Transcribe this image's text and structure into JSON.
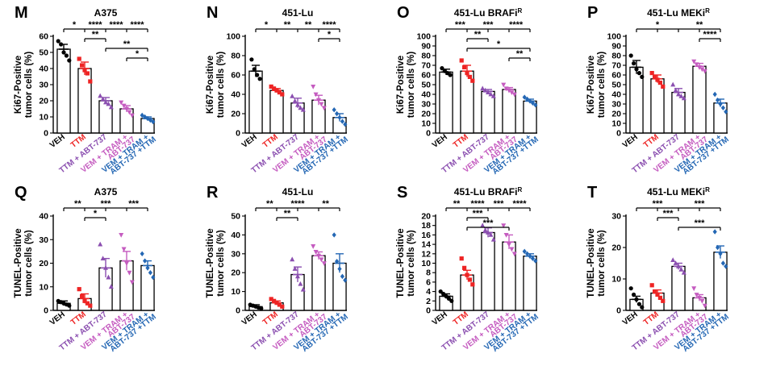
{
  "colors": {
    "VEH": "#000000",
    "TTM": "#ee2424",
    "TTM + ABT-737": "#8b4fb0",
    "VEM + TRAM + ABT-737": "#c55cc0",
    "VEM + TRAM + ABT-737 + TTM": "#2467b4"
  },
  "categories": [
    "VEH",
    "TTM",
    "TTM + ABT-737",
    "VEM + TRAM + ABT-737",
    "VEM + TRAM + ABT-737 + TTM"
  ],
  "tick_label_lines": [
    [
      "VEH"
    ],
    [
      "TTM"
    ],
    [
      "TTM + ABT-737"
    ],
    [
      "VEM + TRAM +",
      "ABT-737"
    ],
    [
      "VEM + TRAM +",
      "ABT-737 +TTM"
    ]
  ],
  "chart_data": [
    {
      "type": "bar",
      "panel": "M",
      "title": "A375",
      "ylabel": "Ki67-Positive tumor cells (%)",
      "ylabel_lines": [
        "Ki67-Positive",
        "tumor cells (%)"
      ],
      "ylim": [
        0,
        60
      ],
      "yticks": [
        0,
        10,
        20,
        30,
        40,
        50,
        60
      ],
      "categories": [
        "VEH",
        "TTM",
        "TTM + ABT-737",
        "VEM + TRAM + ABT-737",
        "VEM + TRAM + ABT-737 + TTM"
      ],
      "values": [
        52,
        40,
        20,
        15,
        9
      ],
      "errors": [
        3,
        4,
        2,
        2,
        1
      ],
      "points": [
        [
          57,
          55,
          50,
          48,
          45
        ],
        [
          46,
          42,
          39,
          37,
          32
        ],
        [
          23,
          21,
          19,
          18,
          16
        ],
        [
          19,
          17,
          15,
          13,
          11
        ],
        [
          11,
          10,
          9,
          8,
          7
        ]
      ],
      "markers": [
        "circle",
        "square",
        "triangle",
        "triangle-down",
        "diamond"
      ],
      "significance": [
        {
          "from": 0,
          "to": 4,
          "labels": [
            "*",
            "****",
            "****",
            "****"
          ],
          "level": 0
        },
        {
          "from": 1,
          "to": 2,
          "labels": [
            "**"
          ],
          "level": 1
        },
        {
          "from": 2,
          "to": 4,
          "labels": [
            "**"
          ],
          "level": 2
        },
        {
          "from": 3,
          "to": 4,
          "labels": [
            "*"
          ],
          "level": 3
        }
      ]
    },
    {
      "type": "bar",
      "panel": "N",
      "title": "451-Lu",
      "ylabel": "Ki67-Positive tumor cells (%)",
      "ylabel_lines": [
        "Ki67-Positive",
        "tumor cells (%)"
      ],
      "ylim": [
        0,
        100
      ],
      "yticks": [
        0,
        20,
        40,
        60,
        80,
        100
      ],
      "categories": [
        "VEH",
        "TTM",
        "TTM + ABT-737",
        "VEM + TRAM + ABT-737",
        "VEM + TRAM + ABT-737 + TTM"
      ],
      "values": [
        64,
        44,
        31,
        34,
        16
      ],
      "errors": [
        6,
        2,
        5,
        5,
        4
      ],
      "points": [
        [
          76,
          66,
          60,
          56
        ],
        [
          48,
          46,
          44,
          42,
          40
        ],
        [
          38,
          33,
          29,
          26,
          24
        ],
        [
          48,
          40,
          34,
          30,
          26
        ],
        [
          24,
          20,
          16,
          12,
          9
        ]
      ],
      "markers": [
        "circle",
        "square",
        "triangle",
        "triangle-down",
        "diamond"
      ],
      "significance": [
        {
          "from": 0,
          "to": 4,
          "labels": [
            "*",
            "**",
            "**",
            "****"
          ],
          "level": 0
        },
        {
          "from": 3,
          "to": 4,
          "labels": [
            "*"
          ],
          "level": 1
        }
      ]
    },
    {
      "type": "bar",
      "panel": "O",
      "title": "451-Lu BRAFi",
      "title_superscript": "R",
      "ylabel": "Ki67-Positive tumor cells (%)",
      "ylabel_lines": [
        "Ki67-Positive",
        "tumor cells (%)"
      ],
      "ylim": [
        0,
        100
      ],
      "yticks": [
        0,
        10,
        20,
        30,
        40,
        50,
        60,
        70,
        80,
        90,
        100
      ],
      "categories": [
        "VEH",
        "TTM",
        "TTM + ABT-737",
        "VEM + TRAM + ABT-737",
        "VEM + TRAM + ABT-737 + TTM"
      ],
      "values": [
        63,
        64,
        43,
        45,
        33
      ],
      "errors": [
        3,
        6,
        2,
        2,
        2
      ],
      "points": [
        [
          67,
          64,
          62,
          60
        ],
        [
          75,
          68,
          62,
          58,
          54
        ],
        [
          46,
          44,
          42,
          40,
          38
        ],
        [
          50,
          46,
          44,
          42,
          40
        ],
        [
          37,
          35,
          33,
          31,
          29
        ]
      ],
      "markers": [
        "circle",
        "square",
        "triangle",
        "triangle-down",
        "diamond"
      ],
      "significance": [
        {
          "from": 0,
          "to": 4,
          "labels": [
            "***",
            "***",
            "****"
          ],
          "level": 0
        },
        {
          "from": 1,
          "to": 2,
          "labels": [
            "**"
          ],
          "level": 1
        },
        {
          "from": 1,
          "to": 4,
          "labels": [
            "*"
          ],
          "level": 2
        },
        {
          "from": 3,
          "to": 4,
          "labels": [
            "**"
          ],
          "level": 3
        }
      ]
    },
    {
      "type": "bar",
      "panel": "P",
      "title": "451-Lu MEKi",
      "title_superscript": "R",
      "ylabel": "Ki67-Positive tumor cells (%)",
      "ylabel_lines": [
        "Ki67-Positive",
        "tumor cells (%)"
      ],
      "ylim": [
        0,
        100
      ],
      "yticks": [
        0,
        10,
        20,
        30,
        40,
        50,
        60,
        70,
        80,
        90,
        100
      ],
      "categories": [
        "VEH",
        "TTM",
        "TTM + ABT-737",
        "VEM + TRAM + ABT-737",
        "VEM + TRAM + ABT-737 + TTM"
      ],
      "values": [
        68,
        56,
        42,
        69,
        31
      ],
      "errors": [
        7,
        4,
        4,
        3,
        4
      ],
      "points": [
        [
          80,
          72,
          66,
          62,
          58
        ],
        [
          62,
          58,
          55,
          52,
          48
        ],
        [
          50,
          44,
          40,
          38,
          36
        ],
        [
          74,
          71,
          68,
          66,
          64
        ],
        [
          40,
          34,
          30,
          26,
          22
        ]
      ],
      "markers": [
        "circle",
        "square",
        "triangle",
        "triangle-down",
        "diamond"
      ],
      "significance": [
        {
          "from": 0,
          "to": 4,
          "labels": [
            "*",
            "**"
          ],
          "level": 0
        },
        {
          "from": 3,
          "to": 4,
          "labels": [
            "****"
          ],
          "level": 1
        }
      ]
    },
    {
      "type": "bar",
      "panel": "Q",
      "title": "A375",
      "ylabel": "TUNEL-Positive tumor cells (%)",
      "ylabel_lines": [
        "TUNEL-Positive",
        "tumor cells (%)"
      ],
      "ylim": [
        0,
        40
      ],
      "yticks": [
        0,
        10,
        20,
        30,
        40
      ],
      "categories": [
        "VEH",
        "TTM",
        "TTM + ABT-737",
        "VEM + TRAM + ABT-737",
        "VEM + TRAM + ABT-737 + TTM"
      ],
      "values": [
        3,
        5,
        18,
        21,
        19
      ],
      "errors": [
        1,
        2,
        4,
        4,
        2
      ],
      "points": [
        [
          4,
          3.5,
          3,
          2.5,
          2
        ],
        [
          9,
          6,
          4,
          3,
          2
        ],
        [
          28,
          22,
          18,
          14,
          10
        ],
        [
          32,
          26,
          20,
          16,
          12
        ],
        [
          24,
          21,
          18,
          16,
          14
        ]
      ],
      "markers": [
        "circle",
        "square",
        "triangle",
        "triangle-down",
        "diamond"
      ],
      "significance": [
        {
          "from": 0,
          "to": 4,
          "labels": [
            "**",
            "***",
            "***"
          ],
          "level": 0
        },
        {
          "from": 1,
          "to": 2,
          "labels": [
            "*"
          ],
          "level": 1
        }
      ]
    },
    {
      "type": "bar",
      "panel": "R",
      "title": "451-Lu",
      "ylabel": "TUNEL-Positive tumor cells (%)",
      "ylabel_lines": [
        "TUNEL-Positive",
        "tumor cells (%)"
      ],
      "ylim": [
        0,
        50
      ],
      "yticks": [
        0,
        10,
        20,
        30,
        40,
        50
      ],
      "categories": [
        "VEH",
        "TTM",
        "TTM + ABT-737",
        "VEM + TRAM + ABT-737",
        "VEM + TRAM + ABT-737 + TTM"
      ],
      "values": [
        2,
        4,
        19,
        29,
        25
      ],
      "errors": [
        1,
        1,
        4,
        2,
        5
      ],
      "points": [
        [
          3,
          2.5,
          2,
          1.5,
          1
        ],
        [
          6,
          5,
          4,
          3,
          2
        ],
        [
          27,
          22,
          18,
          14,
          11
        ],
        [
          34,
          31,
          29,
          27,
          25
        ],
        [
          40,
          26,
          22,
          18,
          16
        ]
      ],
      "markers": [
        "circle",
        "square",
        "triangle",
        "triangle-down",
        "diamond"
      ],
      "significance": [
        {
          "from": 0,
          "to": 4,
          "labels": [
            "**",
            "****",
            "**"
          ],
          "level": 0
        },
        {
          "from": 1,
          "to": 2,
          "labels": [
            "**"
          ],
          "level": 1
        }
      ]
    },
    {
      "type": "bar",
      "panel": "S",
      "title": "451-Lu BRAFi",
      "title_superscript": "R",
      "ylabel": "TUNEL-Positive tumor cells (%)",
      "ylabel_lines": [
        "TUNEL-Positive",
        "tumor cells (%)"
      ],
      "ylim": [
        0,
        20
      ],
      "yticks": [
        0,
        2,
        4,
        6,
        8,
        10,
        12,
        14,
        16,
        18,
        20
      ],
      "categories": [
        "VEH",
        "TTM",
        "TTM + ABT-737",
        "VEM + TRAM + ABT-737",
        "VEM + TRAM + ABT-737 + TTM"
      ],
      "values": [
        3,
        7.5,
        16.5,
        14.5,
        11.5
      ],
      "errors": [
        0.5,
        1,
        1,
        1.5,
        0.5
      ],
      "points": [
        [
          4,
          3.5,
          3,
          2.5,
          2
        ],
        [
          11,
          9,
          7.5,
          6.5,
          5.5
        ],
        [
          18,
          17,
          16.5,
          16,
          15
        ],
        [
          18,
          16,
          14,
          13,
          12
        ],
        [
          12.5,
          12,
          11.5,
          11,
          10.5
        ]
      ],
      "markers": [
        "circle",
        "square",
        "triangle",
        "triangle-down",
        "diamond"
      ],
      "significance": [
        {
          "from": 0,
          "to": 4,
          "labels": [
            "**",
            "****",
            "***",
            "****"
          ],
          "level": 0
        },
        {
          "from": 1,
          "to": 2,
          "labels": [
            "***"
          ],
          "level": 1
        },
        {
          "from": 1,
          "to": 3,
          "labels": [
            "***"
          ],
          "level": 2
        }
      ]
    },
    {
      "type": "bar",
      "panel": "T",
      "title": "451-Lu MEKi",
      "title_superscript": "R",
      "ylabel": "TUNEL-Positive tumor cells (%)",
      "ylabel_lines": [
        "TUNEL-Positive",
        "tumor cells (%)"
      ],
      "ylim": [
        0,
        30
      ],
      "yticks": [
        0,
        10,
        20,
        30
      ],
      "categories": [
        "VEH",
        "TTM",
        "TTM + ABT-737",
        "VEM + TRAM + ABT-737",
        "VEM + TRAM + ABT-737 + TTM"
      ],
      "values": [
        3.5,
        5.5,
        14,
        4,
        18.5
      ],
      "errors": [
        1,
        1,
        1,
        1,
        2
      ],
      "points": [
        [
          7,
          5,
          3.5,
          2,
          1
        ],
        [
          8,
          6,
          5,
          4,
          3
        ],
        [
          16,
          15,
          14,
          13,
          12
        ],
        [
          7,
          5,
          4,
          3,
          1.5
        ],
        [
          25,
          20,
          18,
          15,
          14
        ]
      ],
      "markers": [
        "circle",
        "square",
        "triangle",
        "triangle-down",
        "diamond"
      ],
      "significance": [
        {
          "from": 0,
          "to": 4,
          "labels": [
            "***",
            "***"
          ],
          "level": 0
        },
        {
          "from": 1,
          "to": 2,
          "labels": [
            "***"
          ],
          "level": 1
        },
        {
          "from": 2,
          "to": 4,
          "labels": [
            "***"
          ],
          "level": 2
        }
      ]
    }
  ]
}
